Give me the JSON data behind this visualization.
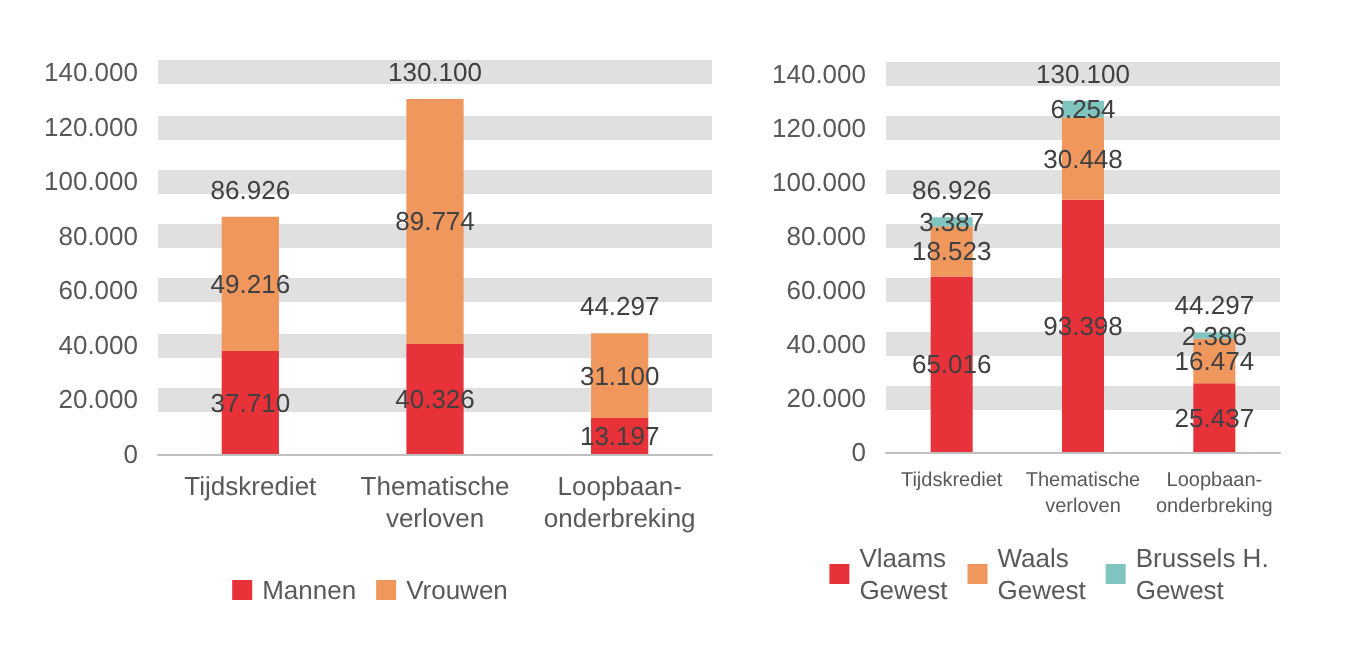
{
  "chart_data": [
    {
      "type": "bar",
      "stacked": true,
      "categories": [
        "Tijdskrediet",
        "Thematische verloven",
        "Loopbaan-onderbreking"
      ],
      "series": [
        {
          "name": "Mannen",
          "color": "#e8323a",
          "values": [
            37710,
            40326,
            13197
          ],
          "value_labels": [
            "37.710",
            "40.326",
            "13.197"
          ]
        },
        {
          "name": "Vrouwen",
          "color": "#f0975e",
          "values": [
            49216,
            89774,
            31100
          ],
          "value_labels": [
            "49.216",
            "89.774",
            "31.100"
          ]
        }
      ],
      "totals": [
        "86.926",
        "130.100",
        "44.297"
      ],
      "ylim": [
        0,
        140000
      ],
      "yticks": [
        0,
        {
          "value": 20000,
          "label": "20.000"
        },
        {
          "value": 40000,
          "label": "40.000"
        },
        {
          "value": 60000,
          "label": "60.000"
        },
        {
          "value": 80000,
          "label": "80.000"
        },
        {
          "value": 100000,
          "label": "100.000"
        },
        {
          "value": 120000,
          "label": "120.000"
        },
        {
          "value": 140000,
          "label": "140.000"
        }
      ],
      "grid": "y",
      "legend": "bottom"
    },
    {
      "type": "bar",
      "stacked": true,
      "categories": [
        "Tijdskrediet",
        "Thematische verloven",
        "Loopbaan-onderbreking"
      ],
      "series": [
        {
          "name": "Vlaams Gewest",
          "color": "#e8323a",
          "values": [
            65016,
            93398,
            25437
          ],
          "value_labels": [
            "65.016",
            "93.398",
            "25.437"
          ]
        },
        {
          "name": "Waals Gewest",
          "color": "#f0975e",
          "values": [
            18523,
            30448,
            16474
          ],
          "value_labels": [
            "18.523",
            "30.448",
            "16.474"
          ]
        },
        {
          "name": "Brussels H. Gewest",
          "color": "#80c4c0",
          "values": [
            3387,
            6254,
            2386
          ],
          "value_labels": [
            "3.387",
            "6.254",
            "2.386"
          ]
        }
      ],
      "totals": [
        "86.926",
        "130.100",
        "44.297"
      ],
      "ylim": [
        0,
        140000
      ],
      "yticks": [
        0,
        {
          "value": 20000,
          "label": "20.000"
        },
        {
          "value": 40000,
          "label": "40.000"
        },
        {
          "value": 60000,
          "label": "60.000"
        },
        {
          "value": 80000,
          "label": "80.000"
        },
        {
          "value": 100000,
          "label": "100.000"
        },
        {
          "value": 120000,
          "label": "120.000"
        },
        {
          "value": 140000,
          "label": "140.000"
        }
      ],
      "grid": "y",
      "legend": "bottom"
    }
  ]
}
